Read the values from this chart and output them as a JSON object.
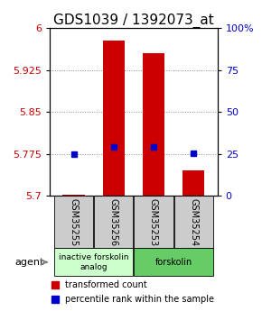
{
  "title": "GDS1039 / 1392073_at",
  "categories": [
    "GSM35255",
    "GSM35256",
    "GSM35253",
    "GSM35254"
  ],
  "bar_values": [
    5.702,
    5.978,
    5.955,
    5.745
  ],
  "bar_base": 5.7,
  "blue_values": [
    5.775,
    5.787,
    5.787,
    5.776
  ],
  "left_ylim": [
    5.7,
    6.0
  ],
  "left_yticks": [
    5.7,
    5.775,
    5.85,
    5.925,
    6.0
  ],
  "left_yticklabels": [
    "5.7",
    "5.775",
    "5.85",
    "5.925",
    "6"
  ],
  "right_ylim": [
    0,
    100
  ],
  "right_yticks": [
    0,
    25,
    50,
    75,
    100
  ],
  "right_yticklabels": [
    "0",
    "25",
    "50",
    "75",
    "100%"
  ],
  "bar_color": "#cc0000",
  "blue_color": "#0000cc",
  "bar_width": 0.55,
  "inactive_color": "#ccffcc",
  "active_color": "#66cc66",
  "xlabel_color_left": "#cc0000",
  "xlabel_color_right": "#0000cc",
  "title_fontsize": 11,
  "tick_fontsize": 8,
  "legend_red_label": "transformed count",
  "legend_blue_label": "percentile rank within the sample",
  "grid_color": "#888888",
  "sample_box_color": "#cccccc"
}
